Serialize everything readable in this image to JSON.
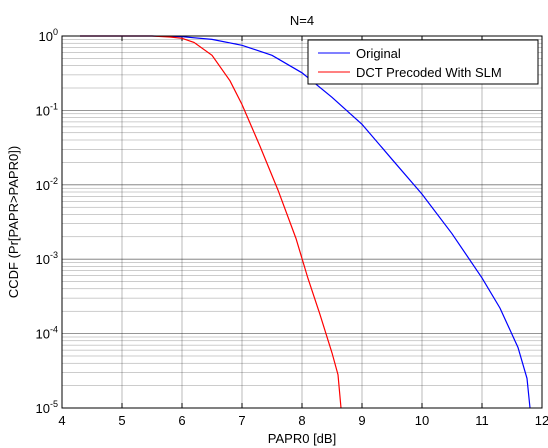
{
  "chart_data": {
    "type": "line",
    "title": "N=4",
    "xlabel": "PAPR0 [dB]",
    "ylabel": "CCDF  (Pr[PAPR>PAPR0])",
    "xlim": [
      4,
      12
    ],
    "ylim": [
      1e-05,
      1
    ],
    "yscale": "log",
    "grid": true,
    "legend_position": "top-right",
    "x_ticks": [
      "4",
      "5",
      "6",
      "7",
      "8",
      "9",
      "10",
      "11",
      "12"
    ],
    "y_ticks": [
      {
        "base": "10",
        "exp": "0"
      },
      {
        "base": "10",
        "exp": "-1"
      },
      {
        "base": "10",
        "exp": "-2"
      },
      {
        "base": "10",
        "exp": "-3"
      },
      {
        "base": "10",
        "exp": "-4"
      },
      {
        "base": "10",
        "exp": "-5"
      }
    ],
    "series": [
      {
        "name": "Original",
        "color": "#0000ff",
        "points": [
          [
            4.3,
            1.0
          ],
          [
            5.5,
            1.0
          ],
          [
            6.0,
            0.98
          ],
          [
            6.5,
            0.9
          ],
          [
            7.0,
            0.75
          ],
          [
            7.5,
            0.55
          ],
          [
            8.0,
            0.32
          ],
          [
            8.5,
            0.15
          ],
          [
            9.0,
            0.065
          ],
          [
            9.5,
            0.022
          ],
          [
            10.0,
            0.0075
          ],
          [
            10.5,
            0.0022
          ],
          [
            11.0,
            0.00056
          ],
          [
            11.3,
            0.00022
          ],
          [
            11.6,
            6.5e-05
          ],
          [
            11.75,
            2.5e-05
          ],
          [
            11.8,
            1e-05
          ]
        ]
      },
      {
        "name": "DCT Precoded With SLM",
        "color": "#ff0000",
        "points": [
          [
            4.3,
            1.0
          ],
          [
            5.5,
            1.0
          ],
          [
            5.8,
            0.97
          ],
          [
            6.0,
            0.93
          ],
          [
            6.2,
            0.82
          ],
          [
            6.5,
            0.55
          ],
          [
            6.8,
            0.25
          ],
          [
            7.0,
            0.12
          ],
          [
            7.3,
            0.033
          ],
          [
            7.6,
            0.0085
          ],
          [
            7.9,
            0.0019
          ],
          [
            8.1,
            0.00055
          ],
          [
            8.3,
            0.00018
          ],
          [
            8.5,
            5.5e-05
          ],
          [
            8.6,
            2.8e-05
          ],
          [
            8.65,
            1e-05
          ]
        ]
      }
    ]
  }
}
